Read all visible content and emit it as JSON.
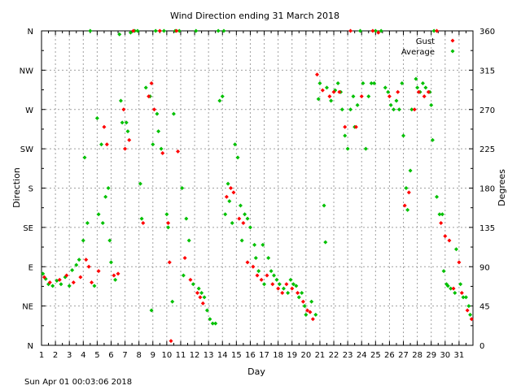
{
  "chart_data": {
    "type": "scatter",
    "title": "Wind Direction ending 31 March 2018",
    "xlabel": "Day",
    "ylabel_left": "Direction",
    "ylabel_right": "Degrees",
    "xlim": [
      1,
      32
    ],
    "ylim": [
      0,
      360
    ],
    "x_ticks": [
      "1",
      "2",
      "3",
      "4",
      "5",
      "6",
      "7",
      "8",
      "9",
      "10",
      "11",
      "12",
      "13",
      "14",
      "15",
      "16",
      "17",
      "18",
      "19",
      "20",
      "21",
      "22",
      "23",
      "24",
      "25",
      "26",
      "27",
      "28",
      "29",
      "30",
      "31"
    ],
    "y_ticks_left": [
      {
        "value": 0,
        "label": "N"
      },
      {
        "value": 45,
        "label": "NE"
      },
      {
        "value": 90,
        "label": "E"
      },
      {
        "value": 135,
        "label": "SE"
      },
      {
        "value": 180,
        "label": "S"
      },
      {
        "value": 225,
        "label": "SW"
      },
      {
        "value": 270,
        "label": "W"
      },
      {
        "value": 315,
        "label": "NW"
      },
      {
        "value": 360,
        "label": "N"
      }
    ],
    "y_ticks_right": [
      "0",
      "45",
      "90",
      "135",
      "180",
      "225",
      "270",
      "315",
      "360"
    ],
    "grid": true,
    "legend_position": "top-right",
    "series": [
      {
        "name": "Gust",
        "color": "#ff0000",
        "marker": "diamond",
        "points": [
          [
            1.2,
            78
          ],
          [
            1.6,
            72
          ],
          [
            2.3,
            75
          ],
          [
            2.8,
            80
          ],
          [
            3.3,
            72
          ],
          [
            3.8,
            78
          ],
          [
            4.2,
            98
          ],
          [
            4.4,
            90
          ],
          [
            4.6,
            72
          ],
          [
            5.1,
            85
          ],
          [
            5.5,
            250
          ],
          [
            5.7,
            230
          ],
          [
            6.2,
            80
          ],
          [
            6.5,
            82
          ],
          [
            6.9,
            270
          ],
          [
            7.0,
            225
          ],
          [
            7.3,
            235
          ],
          [
            7.6,
            360
          ],
          [
            8.3,
            140
          ],
          [
            8.7,
            285
          ],
          [
            8.9,
            300
          ],
          [
            9.1,
            270
          ],
          [
            9.5,
            360
          ],
          [
            9.7,
            220
          ],
          [
            10.1,
            140
          ],
          [
            10.2,
            95
          ],
          [
            10.3,
            5
          ],
          [
            10.7,
            360
          ],
          [
            10.8,
            222
          ],
          [
            11.3,
            100
          ],
          [
            11.7,
            75
          ],
          [
            12.2,
            60
          ],
          [
            12.4,
            55
          ],
          [
            12.6,
            48
          ],
          [
            14.3,
            170
          ],
          [
            14.6,
            180
          ],
          [
            14.8,
            175
          ],
          [
            15.2,
            145
          ],
          [
            15.5,
            140
          ],
          [
            15.8,
            95
          ],
          [
            16.2,
            90
          ],
          [
            16.5,
            80
          ],
          [
            16.8,
            75
          ],
          [
            17.2,
            80
          ],
          [
            17.6,
            70
          ],
          [
            18.0,
            65
          ],
          [
            18.3,
            60
          ],
          [
            18.6,
            70
          ],
          [
            19.0,
            65
          ],
          [
            19.4,
            60
          ],
          [
            19.8,
            50
          ],
          [
            20.1,
            40
          ],
          [
            20.3,
            38
          ],
          [
            20.5,
            30
          ],
          [
            20.8,
            310
          ],
          [
            21.2,
            292
          ],
          [
            21.7,
            285
          ],
          [
            22.0,
            290
          ],
          [
            22.4,
            290
          ],
          [
            22.8,
            250
          ],
          [
            23.2,
            360
          ],
          [
            23.6,
            250
          ],
          [
            24.0,
            285
          ],
          [
            24.8,
            360
          ],
          [
            25.2,
            358
          ],
          [
            26.0,
            285
          ],
          [
            26.6,
            290
          ],
          [
            27.1,
            160
          ],
          [
            27.4,
            175
          ],
          [
            27.8,
            270
          ],
          [
            28.1,
            290
          ],
          [
            28.5,
            285
          ],
          [
            28.8,
            290
          ],
          [
            29.4,
            360
          ],
          [
            29.7,
            140
          ],
          [
            30.0,
            125
          ],
          [
            30.3,
            120
          ],
          [
            30.6,
            65
          ],
          [
            31.0,
            95
          ],
          [
            31.2,
            60
          ],
          [
            31.6,
            40
          ],
          [
            31.9,
            30
          ]
        ]
      },
      {
        "name": "Average",
        "color": "#00c000",
        "marker": "diamond",
        "points": [
          [
            1.1,
            82
          ],
          [
            1.3,
            76
          ],
          [
            1.5,
            70
          ],
          [
            1.8,
            68
          ],
          [
            2.1,
            74
          ],
          [
            2.4,
            70
          ],
          [
            2.7,
            78
          ],
          [
            3.0,
            68
          ],
          [
            3.2,
            86
          ],
          [
            3.5,
            92
          ],
          [
            3.7,
            98
          ],
          [
            4.0,
            120
          ],
          [
            4.1,
            215
          ],
          [
            4.3,
            140
          ],
          [
            4.5,
            360
          ],
          [
            4.8,
            68
          ],
          [
            5.0,
            260
          ],
          [
            5.1,
            150
          ],
          [
            5.3,
            230
          ],
          [
            5.4,
            140
          ],
          [
            5.6,
            170
          ],
          [
            5.8,
            180
          ],
          [
            5.9,
            120
          ],
          [
            6.0,
            95
          ],
          [
            6.3,
            75
          ],
          [
            6.6,
            356
          ],
          [
            6.7,
            280
          ],
          [
            6.8,
            255
          ],
          [
            7.1,
            255
          ],
          [
            7.2,
            245
          ],
          [
            7.4,
            358
          ],
          [
            7.7,
            360
          ],
          [
            7.9,
            360
          ],
          [
            8.1,
            185
          ],
          [
            8.2,
            145
          ],
          [
            8.5,
            295
          ],
          [
            8.8,
            285
          ],
          [
            8.9,
            40
          ],
          [
            9.0,
            230
          ],
          [
            9.2,
            360
          ],
          [
            9.3,
            265
          ],
          [
            9.4,
            245
          ],
          [
            9.6,
            225
          ],
          [
            9.8,
            360
          ],
          [
            10.0,
            150
          ],
          [
            10.1,
            135
          ],
          [
            10.4,
            50
          ],
          [
            10.5,
            265
          ],
          [
            10.6,
            360
          ],
          [
            10.9,
            360
          ],
          [
            11.1,
            180
          ],
          [
            11.2,
            80
          ],
          [
            11.4,
            145
          ],
          [
            11.6,
            120
          ],
          [
            11.9,
            70
          ],
          [
            12.1,
            360
          ],
          [
            12.3,
            65
          ],
          [
            12.5,
            60
          ],
          [
            12.7,
            55
          ],
          [
            12.9,
            40
          ],
          [
            13.1,
            30
          ],
          [
            13.3,
            25
          ],
          [
            13.5,
            25
          ],
          [
            13.7,
            360
          ],
          [
            13.8,
            280
          ],
          [
            14.0,
            285
          ],
          [
            14.1,
            360
          ],
          [
            14.2,
            150
          ],
          [
            14.4,
            185
          ],
          [
            14.5,
            165
          ],
          [
            14.7,
            140
          ],
          [
            14.9,
            230
          ],
          [
            15.1,
            215
          ],
          [
            15.3,
            160
          ],
          [
            15.4,
            120
          ],
          [
            15.6,
            150
          ],
          [
            15.8,
            145
          ],
          [
            16.0,
            135
          ],
          [
            16.3,
            115
          ],
          [
            16.4,
            100
          ],
          [
            16.6,
            85
          ],
          [
            16.9,
            115
          ],
          [
            17.0,
            70
          ],
          [
            17.3,
            100
          ],
          [
            17.5,
            85
          ],
          [
            17.7,
            80
          ],
          [
            17.9,
            75
          ],
          [
            18.1,
            70
          ],
          [
            18.4,
            65
          ],
          [
            18.7,
            60
          ],
          [
            18.9,
            75
          ],
          [
            19.1,
            70
          ],
          [
            19.3,
            68
          ],
          [
            19.5,
            55
          ],
          [
            19.7,
            60
          ],
          [
            19.9,
            45
          ],
          [
            20.0,
            35
          ],
          [
            20.4,
            50
          ],
          [
            20.7,
            35
          ],
          [
            20.9,
            282
          ],
          [
            21.0,
            300
          ],
          [
            21.3,
            160
          ],
          [
            21.4,
            118
          ],
          [
            21.5,
            295
          ],
          [
            21.8,
            280
          ],
          [
            22.1,
            292
          ],
          [
            22.3,
            300
          ],
          [
            22.5,
            290
          ],
          [
            22.6,
            270
          ],
          [
            22.8,
            240
          ],
          [
            23.0,
            225
          ],
          [
            23.2,
            270
          ],
          [
            23.4,
            285
          ],
          [
            23.5,
            250
          ],
          [
            23.7,
            275
          ],
          [
            23.9,
            360
          ],
          [
            24.1,
            300
          ],
          [
            24.3,
            225
          ],
          [
            24.5,
            285
          ],
          [
            24.7,
            300
          ],
          [
            24.9,
            300
          ],
          [
            25.0,
            360
          ],
          [
            25.4,
            360
          ],
          [
            25.7,
            295
          ],
          [
            25.9,
            290
          ],
          [
            26.1,
            275
          ],
          [
            26.3,
            270
          ],
          [
            26.5,
            280
          ],
          [
            26.7,
            270
          ],
          [
            26.9,
            300
          ],
          [
            27.0,
            240
          ],
          [
            27.2,
            180
          ],
          [
            27.3,
            155
          ],
          [
            27.5,
            200
          ],
          [
            27.6,
            270
          ],
          [
            27.9,
            305
          ],
          [
            28.0,
            295
          ],
          [
            28.2,
            290
          ],
          [
            28.4,
            300
          ],
          [
            28.6,
            295
          ],
          [
            28.9,
            290
          ],
          [
            29.0,
            275
          ],
          [
            29.1,
            235
          ],
          [
            29.2,
            360
          ],
          [
            29.4,
            170
          ],
          [
            29.6,
            150
          ],
          [
            29.8,
            150
          ],
          [
            29.9,
            85
          ],
          [
            30.1,
            70
          ],
          [
            30.2,
            68
          ],
          [
            30.4,
            65
          ],
          [
            30.7,
            60
          ],
          [
            30.8,
            110
          ],
          [
            31.1,
            70
          ],
          [
            31.3,
            55
          ],
          [
            31.5,
            55
          ],
          [
            31.7,
            45
          ],
          [
            31.8,
            35
          ]
        ]
      }
    ]
  },
  "footer": {
    "timestamp": "Sun Apr 01 00:03:06 2018"
  }
}
